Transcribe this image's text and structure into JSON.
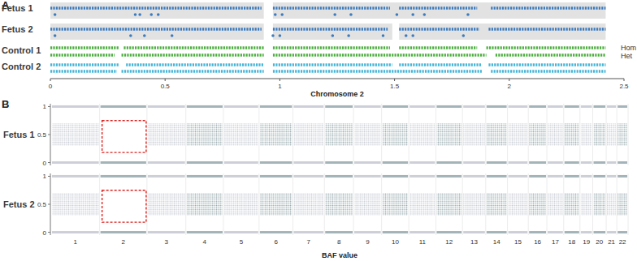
{
  "chart_data": [
    {
      "panel": "A",
      "type": "track",
      "xlabel": "Chromosome 2",
      "xlim": [
        0,
        2.5
      ],
      "xticks": [
        0,
        0.5,
        1,
        1.5,
        2,
        2.5
      ],
      "row_labels": [
        "Hom",
        "Het"
      ],
      "series": [
        {
          "name": "Fetus 1",
          "color": "#3d7bbd",
          "shaded": [
            [
              0,
              0.93
            ],
            [
              0.97,
              2.42
            ]
          ],
          "hom": [
            [
              0.0,
              0.92
            ],
            [
              0.97,
              1.48
            ],
            [
              1.52,
              1.86
            ],
            [
              1.92,
              2.42
            ]
          ],
          "het_points": [
            0.02,
            0.37,
            0.39,
            0.44,
            0.47,
            0.98,
            1.01,
            1.24,
            1.31,
            1.51,
            1.58,
            1.63,
            1.82
          ]
        },
        {
          "name": "Fetus 2",
          "color": "#3d7bbd",
          "shaded": [
            [
              0,
              0.93
            ],
            [
              0.97,
              1.49
            ],
            [
              1.52,
              2.42
            ]
          ],
          "hom": [
            [
              0.0,
              0.92
            ],
            [
              0.97,
              1.47
            ],
            [
              1.52,
              1.87
            ],
            [
              1.91,
              2.42
            ]
          ],
          "het_points": [
            0.02,
            0.35,
            0.41,
            0.53,
            0.97,
            1.0,
            1.23,
            1.3,
            1.45,
            1.55,
            1.58,
            1.8
          ]
        },
        {
          "name": "Control 1",
          "color": "#4caf3f",
          "hom": [
            [
              0.0,
              0.3
            ],
            [
              0.32,
              0.93
            ],
            [
              0.97,
              1.48
            ],
            [
              1.52,
              1.86
            ],
            [
              1.9,
              2.42
            ]
          ],
          "het": [
            [
              0.0,
              0.28
            ],
            [
              0.31,
              0.93
            ],
            [
              0.97,
              1.9
            ],
            [
              1.94,
              2.42
            ]
          ]
        },
        {
          "name": "Control 2",
          "color": "#45b5d8",
          "hom": [
            [
              0.0,
              0.3
            ],
            [
              0.33,
              0.93
            ],
            [
              0.97,
              1.49
            ],
            [
              1.52,
              1.88
            ],
            [
              1.91,
              2.42
            ]
          ],
          "het": [
            [
              0.0,
              0.29
            ],
            [
              0.31,
              0.93
            ],
            [
              0.97,
              1.88
            ],
            [
              1.92,
              2.42
            ]
          ]
        }
      ]
    },
    {
      "panel": "B",
      "type": "baf",
      "xlabel": "BAF value",
      "categories": [
        "1",
        "2",
        "3",
        "4",
        "5",
        "6",
        "7",
        "8",
        "9",
        "10",
        "11",
        "12",
        "13",
        "14",
        "15",
        "16",
        "17",
        "18",
        "19",
        "20",
        "21",
        "22"
      ],
      "chromosome_length": [
        249,
        243,
        198,
        191,
        181,
        171,
        159,
        146,
        141,
        136,
        135,
        133,
        115,
        107,
        102,
        90,
        81,
        78,
        59,
        63,
        48,
        51
      ],
      "ylim": [
        -0.05,
        1.05
      ],
      "yticks": [
        0,
        0.5,
        1
      ],
      "hom_values": [
        0,
        1
      ],
      "series": [
        {
          "name": "Fetus 1",
          "het_band": [
            [
              0.3,
              0.7
            ],
            null,
            [
              0.3,
              0.7
            ],
            [
              0.3,
              0.7
            ],
            [
              0.3,
              0.7
            ],
            [
              0.3,
              0.7
            ],
            [
              0.3,
              0.7
            ],
            [
              0.3,
              0.7
            ],
            [
              0.3,
              0.7
            ],
            [
              0.3,
              0.7
            ],
            [
              0.3,
              0.7
            ],
            [
              0.3,
              0.7
            ],
            [
              0.3,
              0.7
            ],
            [
              0.3,
              0.7
            ],
            [
              0.3,
              0.7
            ],
            [
              0.3,
              0.7
            ],
            [
              0.3,
              0.7
            ],
            [
              0.3,
              0.7
            ],
            [
              0.3,
              0.7
            ],
            [
              0.3,
              0.7
            ],
            [
              0.3,
              0.7
            ],
            [
              0.3,
              0.7
            ]
          ],
          "highlight": {
            "category": "2",
            "ylim": [
              0.18,
              0.75
            ]
          }
        },
        {
          "name": "Fetus 2",
          "het_band": [
            [
              0.3,
              0.7
            ],
            null,
            [
              0.3,
              0.7
            ],
            [
              0.3,
              0.7
            ],
            [
              0.3,
              0.7
            ],
            [
              0.3,
              0.7
            ],
            [
              0.3,
              0.7
            ],
            [
              0.3,
              0.7
            ],
            [
              0.3,
              0.7
            ],
            [
              0.3,
              0.7
            ],
            [
              0.3,
              0.7
            ],
            [
              0.3,
              0.7
            ],
            [
              0.3,
              0.7
            ],
            [
              0.3,
              0.7
            ],
            [
              0.3,
              0.7
            ],
            [
              0.3,
              0.7
            ],
            [
              0.3,
              0.7
            ],
            [
              0.3,
              0.7
            ],
            [
              0.3,
              0.7
            ],
            [
              0.3,
              0.7
            ],
            [
              0.3,
              0.7
            ],
            [
              0.3,
              0.7
            ]
          ],
          "highlight": {
            "category": "2",
            "ylim": [
              0.18,
              0.75
            ]
          }
        }
      ]
    }
  ]
}
